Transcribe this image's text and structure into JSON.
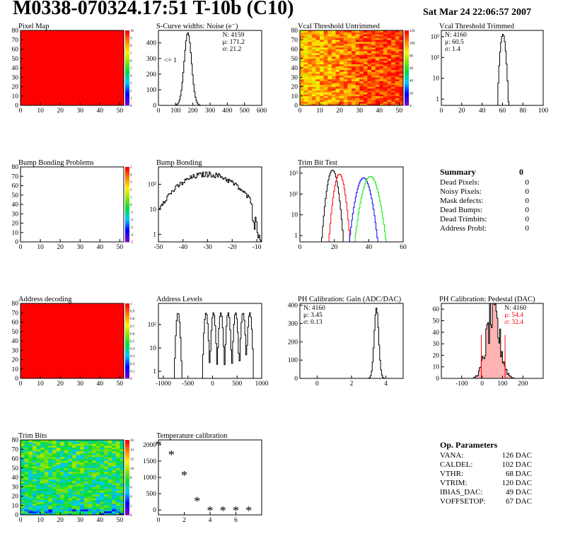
{
  "header": {
    "title": "M0338-070324.17:51 T-10b (C10)",
    "date": "Sat Mar 24 22:06:57 2007"
  },
  "colors": {
    "red": "#ff0000",
    "green": "#00ee00",
    "blue": "#0000ff",
    "black": "#000000",
    "fill": "#ff8080"
  },
  "summary": {
    "title": "Summary",
    "total": "0",
    "rows": [
      {
        "label": "Dead Pixels:",
        "value": "0"
      },
      {
        "label": "Noisy Pixels:",
        "value": "0"
      },
      {
        "label": "Mask defects:",
        "value": "0"
      },
      {
        "label": "Dead Bumps:",
        "value": "0"
      },
      {
        "label": "Dead Trimbits:",
        "value": "0"
      },
      {
        "label": "Address Probl:",
        "value": "0"
      }
    ]
  },
  "op_params": {
    "title": "Op. Parameters",
    "rows": [
      {
        "label": "VANA:",
        "value": "126 DAC"
      },
      {
        "label": "CALDEL:",
        "value": "102 DAC"
      },
      {
        "label": "VTHR:",
        "value": "68 DAC"
      },
      {
        "label": "VTRIM:",
        "value": "120 DAC"
      },
      {
        "label": "IBIAS_DAC:",
        "value": "49 DAC"
      },
      {
        "label": "VOFFSETOP:",
        "value": "67 DAC"
      }
    ]
  },
  "chart_data": [
    {
      "id": "pixel-map",
      "type": "heatmap",
      "title": "Pixel Map",
      "pattern": "uniform-high",
      "xlim": [
        0,
        52
      ],
      "ylim": [
        0,
        80
      ],
      "xticks": [
        "0",
        "10",
        "20",
        "30",
        "40",
        "50"
      ],
      "yticks": [
        "0",
        "10",
        "20",
        "30",
        "40",
        "50",
        "60",
        "70",
        "80"
      ],
      "zticks": [
        "0",
        "1",
        "2",
        "3",
        "4",
        "5",
        "6",
        "7",
        "8",
        "9",
        "10"
      ]
    },
    {
      "id": "scurve",
      "type": "histogram",
      "title": "S-Curve widths: Noise (e⁻)",
      "xlim": [
        0,
        600
      ],
      "ylim": [
        0,
        480
      ],
      "log": false,
      "xticks": [
        "0",
        "100",
        "200",
        "300",
        "400",
        "500",
        "600"
      ],
      "yticks": [
        "0",
        "100",
        "200",
        "300",
        "400"
      ],
      "series": [
        {
          "center": 171.2,
          "sigma": 21.2,
          "peak": 465,
          "color": "black"
        }
      ],
      "stats": [
        {
          "text": "N: 4159"
        },
        {
          "text": "μ: 171.2"
        },
        {
          "text": "σ: 21.2"
        }
      ],
      "annotation": "<= 1"
    },
    {
      "id": "vcal-untrimmed",
      "type": "heatmap",
      "title": "Vcal Threshold Untrimmed",
      "pattern": "noisy-warm",
      "xlim": [
        0,
        52
      ],
      "ylim": [
        0,
        80
      ],
      "xticks": [
        "0",
        "10",
        "20",
        "30",
        "40",
        "50"
      ],
      "yticks": [
        "0",
        "10",
        "20",
        "30",
        "40",
        "50",
        "60",
        "70",
        "80"
      ],
      "zticks": [
        "0",
        "20",
        "40",
        "60",
        "80",
        "100",
        "120"
      ]
    },
    {
      "id": "vcal-trimmed",
      "type": "histogram",
      "title": "Vcal Threshold Trimmed",
      "xlim": [
        0,
        100
      ],
      "ylim": [
        0.5,
        2000
      ],
      "log": true,
      "xticks": [
        "0",
        "20",
        "40",
        "60",
        "80",
        "100"
      ],
      "yticks": [
        "1",
        "10",
        "10²",
        "10³"
      ],
      "series": [
        {
          "center": 60.5,
          "sigma": 1.4,
          "peak": 1300,
          "color": "black"
        }
      ],
      "stats": [
        {
          "text": "N: 4160"
        },
        {
          "text": "μ: 60.5"
        },
        {
          "text": "σ:  1.4"
        }
      ]
    },
    {
      "id": "bump-problems",
      "type": "heatmap",
      "title": "Bump Bonding Problems",
      "pattern": "empty",
      "xlim": [
        0,
        52
      ],
      "ylim": [
        0,
        80
      ],
      "xticks": [
        "0",
        "10",
        "20",
        "30",
        "40",
        "50"
      ],
      "yticks": [
        "0",
        "10",
        "20",
        "30",
        "40",
        "50",
        "60",
        "70",
        "80"
      ],
      "zticks": [
        "-5",
        "-4",
        "-3",
        "-2",
        "-1",
        "0",
        "1",
        "2",
        "3",
        "4",
        "5"
      ]
    },
    {
      "id": "bump-bonding",
      "type": "histogram",
      "title": "Bump Bonding",
      "xlim": [
        -50,
        -8
      ],
      "ylim": [
        0.5,
        500
      ],
      "log": true,
      "xticks": [
        "-50",
        "-40",
        "-30",
        "-20",
        "-10"
      ],
      "yticks": [
        "1",
        "10",
        "10²"
      ],
      "series": [
        {
          "center": -30,
          "sigma": 8,
          "peak": 260,
          "color": "black",
          "shape": "broad"
        }
      ]
    },
    {
      "id": "trim-bit-test",
      "type": "histogram",
      "title": "Trim Bit Test",
      "xlim": [
        0,
        60
      ],
      "ylim": [
        0.5,
        2000
      ],
      "log": true,
      "xticks": [
        "0",
        "20",
        "40",
        "60"
      ],
      "yticks": [
        "1",
        "10",
        "10²",
        "10³"
      ],
      "series": [
        {
          "center": 19,
          "sigma": 1.6,
          "peak": 1400,
          "color": "black"
        },
        {
          "center": 23,
          "sigma": 1.6,
          "peak": 900,
          "color": "red"
        },
        {
          "center": 37,
          "sigma": 2.2,
          "peak": 600,
          "color": "blue"
        },
        {
          "center": 41,
          "sigma": 2.4,
          "peak": 700,
          "color": "green"
        }
      ]
    },
    {
      "id": "address-decoding",
      "type": "heatmap",
      "title": "Address decoding",
      "pattern": "uniform-high",
      "xlim": [
        0,
        52
      ],
      "ylim": [
        0,
        80
      ],
      "xticks": [
        "0",
        "10",
        "20",
        "30",
        "40",
        "50"
      ],
      "yticks": [
        "0",
        "10",
        "20",
        "30",
        "40",
        "50",
        "60",
        "70",
        "80"
      ],
      "zticks": [
        "0",
        "0.1",
        "0.2",
        "0.3",
        "0.4",
        "0.5",
        "0.6",
        "0.7",
        "0.8",
        "0.9",
        "1"
      ]
    },
    {
      "id": "address-levels",
      "type": "histogram",
      "title": "Address Levels",
      "xlim": [
        -1100,
        1000
      ],
      "ylim": [
        0.5,
        800
      ],
      "log": true,
      "xticks": [
        "-1000",
        "-500",
        "0",
        "500",
        "1000"
      ],
      "yticks": [
        "1",
        "10",
        "10²"
      ],
      "series": [
        {
          "peaks": [
            -700,
            -130,
            20,
            170,
            320,
            470,
            620,
            760
          ],
          "peak": 320,
          "color": "black",
          "shape": "multipeak"
        }
      ]
    },
    {
      "id": "ph-gain",
      "type": "histogram",
      "title": "PH Calibration: Gain (ADC/DAC)",
      "xlim": [
        -1,
        5
      ],
      "ylim": [
        0,
        410
      ],
      "log": false,
      "xticks": [
        "0",
        "2",
        "4"
      ],
      "yticks": [
        "0",
        "100",
        "200",
        "300",
        "400"
      ],
      "series": [
        {
          "center": 3.45,
          "sigma": 0.13,
          "peak": 385,
          "color": "black"
        }
      ],
      "stats": [
        {
          "text": "N: 4160"
        },
        {
          "text": "μ: 3.45"
        },
        {
          "text": "σ: 0.13"
        }
      ]
    },
    {
      "id": "ph-pedestal",
      "type": "histogram",
      "title": "PH Calibration: Pedestal (DAC)",
      "xlim": [
        -200,
        300
      ],
      "ylim": [
        0,
        65
      ],
      "log": false,
      "xticks": [
        "-100",
        "0",
        "100",
        "200"
      ],
      "yticks": [
        "0",
        "10",
        "20",
        "30",
        "40",
        "50",
        "60"
      ],
      "series": [
        {
          "center": 54.4,
          "sigma": 32.4,
          "peak": 55,
          "color": "black",
          "shape": "noisy",
          "fill": true
        }
      ],
      "stats": [
        {
          "text": "N: 4160",
          "color": "black"
        },
        {
          "text": "μ: 54.4",
          "color": "red"
        },
        {
          "text": "σ: 32.4",
          "color": "red"
        }
      ]
    },
    {
      "id": "trim-bits",
      "type": "heatmap",
      "title": "Trim Bits",
      "pattern": "noisy-green",
      "xlim": [
        0,
        52
      ],
      "ylim": [
        0,
        80
      ],
      "xticks": [
        "0",
        "10",
        "20",
        "30",
        "40",
        "50"
      ],
      "yticks": [
        "0",
        "10",
        "20",
        "30",
        "40",
        "50",
        "60",
        "70",
        "80"
      ],
      "zticks": [
        "0",
        "2",
        "4",
        "6",
        "8",
        "10",
        "12",
        "14",
        "16"
      ]
    },
    {
      "id": "temperature",
      "type": "scatter",
      "title": "Temperature calibration",
      "xlim": [
        0,
        8
      ],
      "ylim": [
        -150,
        2150
      ],
      "xticks": [
        "0",
        "2",
        "4",
        "6"
      ],
      "yticks": [
        "0",
        "500",
        "1000",
        "1500",
        "2000"
      ],
      "points": [
        {
          "x": 0,
          "y": 2020
        },
        {
          "x": 1,
          "y": 1720
        },
        {
          "x": 2,
          "y": 1090
        },
        {
          "x": 3,
          "y": 300
        },
        {
          "x": 4,
          "y": 0
        },
        {
          "x": 5,
          "y": 0
        },
        {
          "x": 6,
          "y": 0
        },
        {
          "x": 7,
          "y": 0
        }
      ]
    }
  ]
}
